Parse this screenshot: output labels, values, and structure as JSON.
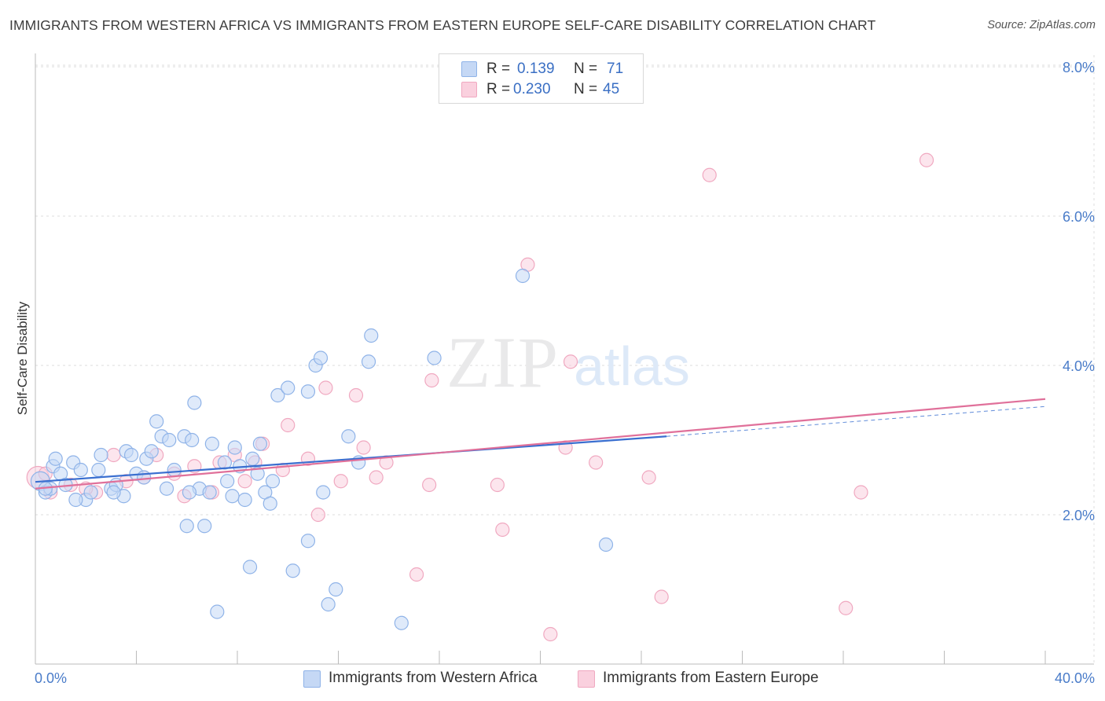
{
  "title": "IMMIGRANTS FROM WESTERN AFRICA VS IMMIGRANTS FROM EASTERN EUROPE SELF-CARE DISABILITY CORRELATION CHART",
  "source": "Source: ZipAtlas.com",
  "watermark": {
    "zip": "ZIP",
    "atlas": "atlas"
  },
  "legend": {
    "rows": [
      {
        "r_label": "R =",
        "r_value": "0.139",
        "n_label": "N =",
        "n_value": "71"
      },
      {
        "r_label": "R =",
        "r_value": "0.230",
        "n_label": "N =",
        "n_value": "45"
      }
    ]
  },
  "chart_data": {
    "type": "scatter",
    "title": "IMMIGRANTS FROM WESTERN AFRICA VS IMMIGRANTS FROM EASTERN EUROPE SELF-CARE DISABILITY CORRELATION CHART",
    "xlabel": "",
    "ylabel": "Self-Care Disability",
    "xlim": [
      0,
      40
    ],
    "ylim": [
      0,
      8.2
    ],
    "x_tick_labels": [
      "0.0%",
      "40.0%"
    ],
    "y_ticks": [
      2,
      4,
      6,
      8
    ],
    "y_tick_labels": [
      "2.0%",
      "4.0%",
      "6.0%",
      "8.0%"
    ],
    "grid": true,
    "legend_position": "top-center",
    "series": [
      {
        "name": "Immigrants from Western Africa",
        "color": "#8fb3e8",
        "fill": "#c5d8f5",
        "line_color": "#3a6fd0",
        "R": 0.139,
        "N": 71,
        "trend": {
          "x0": 0,
          "y0": 2.44,
          "x1": 25,
          "y1": 3.05,
          "dash_x1": 40,
          "dash_y1": 3.45
        },
        "points": [
          [
            0.2,
            2.45
          ],
          [
            0.4,
            2.3
          ],
          [
            0.6,
            2.35
          ],
          [
            0.7,
            2.65
          ],
          [
            0.8,
            2.75
          ],
          [
            1.0,
            2.55
          ],
          [
            1.2,
            2.4
          ],
          [
            1.5,
            2.7
          ],
          [
            1.8,
            2.6
          ],
          [
            2.0,
            2.2
          ],
          [
            2.2,
            2.3
          ],
          [
            2.5,
            2.6
          ],
          [
            2.6,
            2.8
          ],
          [
            3.0,
            2.35
          ],
          [
            3.2,
            2.4
          ],
          [
            3.5,
            2.25
          ],
          [
            3.6,
            2.85
          ],
          [
            3.8,
            2.8
          ],
          [
            4.0,
            2.55
          ],
          [
            4.3,
            2.5
          ],
          [
            4.4,
            2.75
          ],
          [
            4.6,
            2.85
          ],
          [
            4.8,
            3.25
          ],
          [
            5.0,
            3.05
          ],
          [
            5.2,
            2.35
          ],
          [
            5.3,
            3.0
          ],
          [
            5.5,
            2.6
          ],
          [
            5.9,
            3.05
          ],
          [
            6.0,
            1.85
          ],
          [
            6.2,
            3.0
          ],
          [
            6.3,
            3.5
          ],
          [
            6.5,
            2.35
          ],
          [
            6.7,
            1.85
          ],
          [
            6.9,
            2.3
          ],
          [
            7.0,
            2.95
          ],
          [
            7.2,
            0.7
          ],
          [
            7.5,
            2.7
          ],
          [
            7.6,
            2.45
          ],
          [
            7.8,
            2.25
          ],
          [
            7.9,
            2.9
          ],
          [
            8.1,
            2.65
          ],
          [
            8.3,
            2.2
          ],
          [
            8.5,
            1.3
          ],
          [
            8.6,
            2.75
          ],
          [
            8.8,
            2.55
          ],
          [
            8.9,
            2.95
          ],
          [
            9.1,
            2.3
          ],
          [
            9.3,
            2.15
          ],
          [
            9.4,
            2.45
          ],
          [
            9.6,
            3.6
          ],
          [
            10.0,
            3.7
          ],
          [
            10.2,
            1.25
          ],
          [
            10.8,
            3.65
          ],
          [
            10.8,
            1.65
          ],
          [
            11.1,
            4.0
          ],
          [
            11.3,
            4.1
          ],
          [
            11.4,
            2.3
          ],
          [
            11.6,
            0.8
          ],
          [
            11.9,
            1.0
          ],
          [
            12.4,
            3.05
          ],
          [
            12.8,
            2.7
          ],
          [
            13.2,
            4.05
          ],
          [
            13.3,
            4.4
          ],
          [
            14.5,
            0.55
          ],
          [
            15.8,
            4.1
          ],
          [
            19.3,
            5.2
          ],
          [
            22.6,
            1.6
          ],
          [
            0.4,
            2.35
          ],
          [
            1.6,
            2.2
          ],
          [
            3.1,
            2.3
          ],
          [
            6.1,
            2.3
          ]
        ]
      },
      {
        "name": "Immigrants from Eastern Europe",
        "color": "#f0a8c0",
        "fill": "#fad0de",
        "line_color": "#e0709a",
        "R": 0.23,
        "N": 45,
        "trend": {
          "x0": 0,
          "y0": 2.35,
          "x1": 40,
          "y1": 3.55
        },
        "points": [
          [
            0.1,
            2.5
          ],
          [
            0.6,
            2.3
          ],
          [
            1.4,
            2.4
          ],
          [
            2.4,
            2.3
          ],
          [
            3.1,
            2.8
          ],
          [
            3.6,
            2.45
          ],
          [
            4.3,
            2.5
          ],
          [
            4.8,
            2.8
          ],
          [
            5.5,
            2.55
          ],
          [
            5.9,
            2.25
          ],
          [
            6.3,
            2.65
          ],
          [
            7.0,
            2.3
          ],
          [
            7.3,
            2.7
          ],
          [
            7.9,
            2.8
          ],
          [
            8.3,
            2.45
          ],
          [
            8.7,
            2.7
          ],
          [
            9.0,
            2.95
          ],
          [
            9.8,
            2.6
          ],
          [
            10.0,
            3.2
          ],
          [
            10.8,
            2.75
          ],
          [
            11.2,
            2.0
          ],
          [
            11.5,
            3.7
          ],
          [
            12.1,
            2.45
          ],
          [
            12.7,
            3.6
          ],
          [
            13.0,
            2.9
          ],
          [
            13.5,
            2.5
          ],
          [
            13.9,
            2.7
          ],
          [
            15.1,
            1.2
          ],
          [
            15.6,
            2.4
          ],
          [
            15.7,
            3.8
          ],
          [
            18.3,
            2.4
          ],
          [
            18.5,
            1.8
          ],
          [
            19.5,
            5.35
          ],
          [
            20.4,
            0.4
          ],
          [
            21.0,
            2.9
          ],
          [
            21.2,
            4.05
          ],
          [
            22.2,
            2.7
          ],
          [
            24.3,
            2.5
          ],
          [
            24.8,
            0.9
          ],
          [
            26.7,
            6.55
          ],
          [
            32.1,
            0.75
          ],
          [
            32.7,
            2.3
          ],
          [
            35.3,
            6.75
          ],
          [
            0.4,
            2.55
          ],
          [
            2.0,
            2.35
          ]
        ]
      }
    ]
  }
}
